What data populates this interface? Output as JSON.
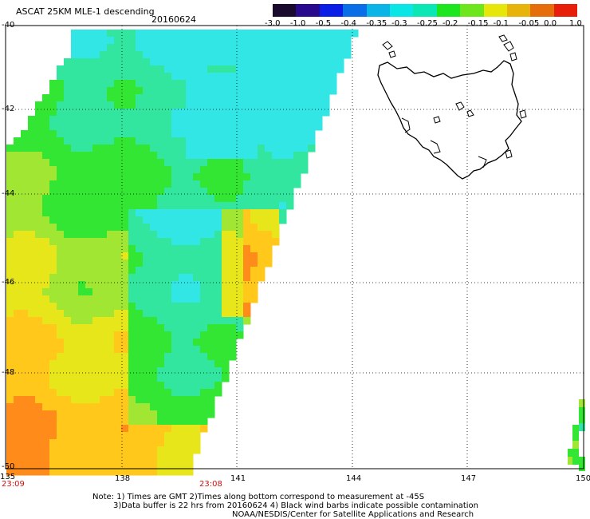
{
  "header": {
    "title": "ASCAT 25KM MLE-1 descending",
    "date": "20160624"
  },
  "colorbar": {
    "labels": [
      "-3.0",
      "-1.0",
      "-0.5",
      "-0.4",
      "-0.35",
      "-0.3",
      "-0.25",
      "-0.2",
      "-0.15",
      "-0.1",
      "-0.05",
      "0.0",
      "1.0"
    ],
    "colors": [
      "#1a0a2e",
      "#2a0a8c",
      "#0a1ee6",
      "#0a6ee6",
      "#0ab4e6",
      "#0ae6e6",
      "#0ae6b4",
      "#1ee61e",
      "#6ee61e",
      "#e6e60a",
      "#e6b40a",
      "#e66e0a",
      "#e61e0a"
    ]
  },
  "axes": {
    "lat_labels": [
      "-40",
      "-42",
      "-44",
      "-46",
      "-48",
      "-50"
    ],
    "lon_labels": [
      "135",
      "138",
      "141",
      "144",
      "147",
      "150"
    ]
  },
  "times": {
    "left": "23:09",
    "mid": "23:08"
  },
  "notes": {
    "line1": "Note: 1) Times are GMT 2)Times along bottom correspond to measurement at -45S",
    "line2": "3)Data buffer is 22 hrs from 20160624 4) Black wind barbs indicate possible contamination",
    "line3": "NOAA/NESDIS/Center for Satellite Applications and Research"
  },
  "palette": {
    "cyan": "#33e6e6",
    "aqua_green": "#33e6a0",
    "green": "#33e633",
    "lime": "#a0e633",
    "yellow": "#e6e61a",
    "gold": "#ffc81a",
    "orange": "#ff8c1a"
  }
}
